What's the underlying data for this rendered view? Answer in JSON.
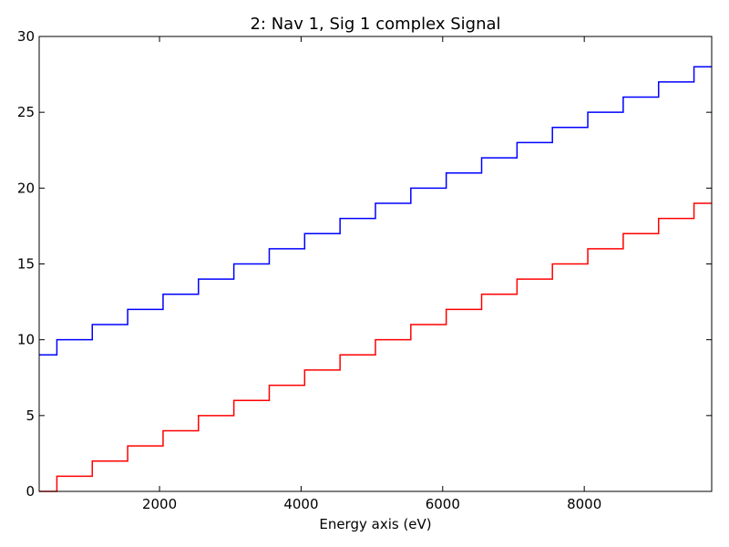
{
  "chart_data": {
    "type": "line",
    "drawstyle": "steps-mid",
    "title": "2: Nav 1, Sig 1 complex Signal",
    "xlabel": "Energy axis (eV)",
    "ylabel": "",
    "xlim": [
      300,
      9800
    ],
    "ylim": [
      0,
      30
    ],
    "xticks": [
      2000,
      4000,
      6000,
      8000
    ],
    "xtick_labels": [
      "2000",
      "4000",
      "6000",
      "8000"
    ],
    "yticks": [
      0,
      5,
      10,
      15,
      20,
      25,
      30
    ],
    "ytick_labels": [
      "0",
      "5",
      "10",
      "15",
      "20",
      "25",
      "30"
    ],
    "grid": false,
    "legend": false,
    "x": [
      300,
      800,
      1300,
      1800,
      2300,
      2800,
      3300,
      3800,
      4300,
      4800,
      5300,
      5800,
      6300,
      6800,
      7300,
      7800,
      8300,
      8800,
      9300,
      9800
    ],
    "series": [
      {
        "color": "#0000ff",
        "values": [
          9,
          10,
          11,
          12,
          13,
          14,
          15,
          16,
          17,
          18,
          19,
          20,
          21,
          22,
          23,
          24,
          25,
          26,
          27,
          28
        ]
      },
      {
        "color": "#ff0000",
        "values": [
          0,
          1,
          2,
          3,
          4,
          5,
          6,
          7,
          8,
          9,
          10,
          11,
          12,
          13,
          14,
          15,
          16,
          17,
          18,
          19
        ]
      }
    ]
  }
}
